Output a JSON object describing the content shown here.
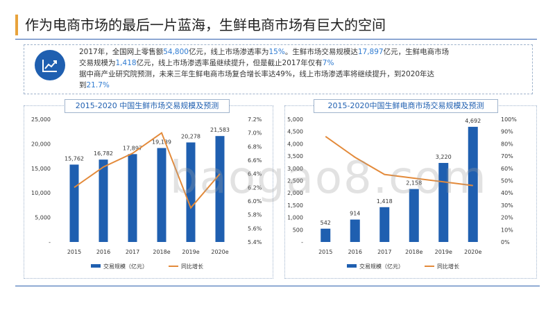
{
  "title": "作为电商市场的最后一片蓝海，生鲜电商市场有巨大的空间",
  "summary": {
    "icon": "trend-chart-icon",
    "line1": {
      "a": "2017年，全国网上零售额",
      "b": "54,800",
      "c": "亿元，线上市场渗透率为",
      "d": "15%",
      "e": "。生鲜市场交易规模达",
      "f": "17,897",
      "g": "亿元，生鲜电商市场"
    },
    "line2": {
      "a": "交易规模为",
      "b": "1,418",
      "c": "亿元，线上市场渗透率虽继续提升，但是截止2017年仅有",
      "d": "7%"
    },
    "line3": {
      "a": "据中商产业研究院预测，未来三年生鲜电商市场复合增长率达49%，线上市场渗透率将继续提升，到2020年达"
    },
    "line4": {
      "a": "到",
      "b": "21.7%"
    }
  },
  "watermark": "baogao8.com",
  "colors": {
    "bar": "#1f5fb0",
    "line": "#e38a3a",
    "accent": "#e8a33c",
    "rule": "#2e5fae"
  },
  "chart_data": [
    {
      "type": "bar",
      "title": "2015-2020 中国生鲜市场交易规模及预测",
      "categories": [
        "2015",
        "2016",
        "2017",
        "2018e",
        "2019e",
        "2020e"
      ],
      "series": [
        {
          "name": "交易规模（亿元）",
          "type": "bar",
          "axis": "left",
          "values": [
            15762,
            16782,
            17897,
            19139,
            20278,
            21583
          ]
        },
        {
          "name": "同比增长",
          "type": "line",
          "axis": "right",
          "values": [
            6.2,
            6.5,
            6.7,
            7.0,
            5.9,
            6.4
          ]
        }
      ],
      "data_labels": [
        "15,762",
        "16,782",
        "17,897",
        "19,139",
        "20,278",
        "21,583"
      ],
      "ylim": [
        0,
        25000
      ],
      "y_ticks": [
        "-",
        "5,000",
        "10,000",
        "15,000",
        "20,000",
        "25,000"
      ],
      "y2lim": [
        5.4,
        7.2
      ],
      "y2_ticks": [
        "5.4%",
        "5.6%",
        "5.8%",
        "6.0%",
        "6.2%",
        "6.4%",
        "6.6%",
        "6.8%",
        "7.0%",
        "7.2%"
      ],
      "legend": "bottom"
    },
    {
      "type": "bar",
      "title": "2015-2020中国生鲜电商市场交易规模及预测",
      "categories": [
        "2015",
        "2016",
        "2017",
        "2018e",
        "2019e",
        "2020e"
      ],
      "series": [
        {
          "name": "交易规模（亿元）",
          "type": "bar",
          "axis": "left",
          "values": [
            542,
            914,
            1418,
            2158,
            3220,
            4692
          ]
        },
        {
          "name": "同比增长",
          "type": "line",
          "axis": "right",
          "values": [
            86,
            69,
            55,
            52,
            49,
            46
          ]
        }
      ],
      "data_labels": [
        "542",
        "914",
        "1,418",
        "2,158",
        "3,220",
        "4,692"
      ],
      "ylim": [
        0,
        5000
      ],
      "y_ticks": [
        "-",
        "500",
        "1,000",
        "1,500",
        "2,000",
        "2,500",
        "3,000",
        "3,500",
        "4,000",
        "4,500",
        "5,000"
      ],
      "y2lim": [
        0,
        100
      ],
      "y2_ticks": [
        "0%",
        "10%",
        "20%",
        "30%",
        "40%",
        "50%",
        "60%",
        "70%",
        "80%",
        "90%",
        "100%"
      ],
      "legend": "bottom"
    }
  ]
}
